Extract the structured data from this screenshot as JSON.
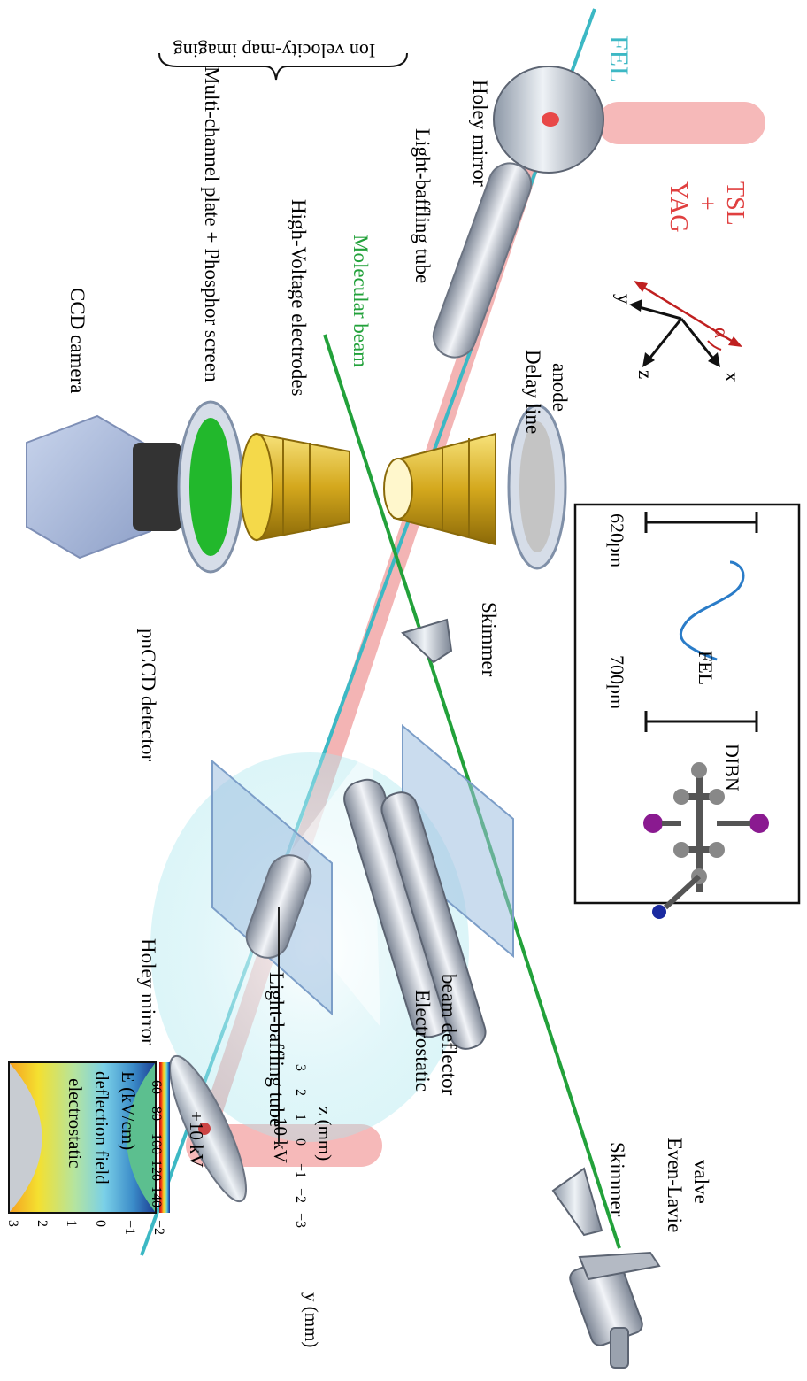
{
  "labels": {
    "ion_vmi": "Ion velocity-map imaging",
    "mcp": "Multi-channel plate + Phosphor screen",
    "ccd": "CCD camera",
    "hv": "High-Voltage electrodes",
    "molbeam": "Molecular beam",
    "lbt_right": "Light-baffling tube",
    "holey_right": "Holey mirror",
    "fel": "FEL",
    "delay1": "Delay line",
    "delay2": "anode",
    "yag": "YAG",
    "plus": "+",
    "tsl": "TSL",
    "pnccd": "pnCCD detector",
    "skimmer1": "Skimmer",
    "holey_left": "Holey mirror",
    "lbt_left": "Light-baffling tube",
    "ebd1": "Electrostatic",
    "ebd2": "beam deflector",
    "skimmer2": "Skimmer",
    "elv1": "Even-Lavie",
    "elv2": "valve"
  },
  "axes": {
    "y": "y",
    "z": "z",
    "x": "x",
    "alpha": "α"
  },
  "inset": {
    "scale1": "700pm",
    "scale2": "620pm",
    "fel": "FEL",
    "molecule": "DIBN"
  },
  "field_plot": {
    "title1": "electrostatic",
    "title2": "deflection field",
    "plus": "+10 kV",
    "minus": "-10 kV",
    "ylabel": "y (mm)",
    "xlabel": "z (mm)",
    "cbar_label": "E (kV/cm)",
    "y_ticks": [
      "3",
      "2",
      "1",
      "0",
      "−1",
      "−2"
    ],
    "x_ticks": [
      "−3",
      "−2",
      "−1",
      "0",
      "1",
      "2",
      "3"
    ],
    "cbar_ticks": [
      "140",
      "120",
      "100",
      "80",
      "60"
    ]
  },
  "colors": {
    "fel": "#3cb8c4",
    "laser": "#e85a5a",
    "molbeam": "#22a13a",
    "gold": "#c8a21e"
  }
}
